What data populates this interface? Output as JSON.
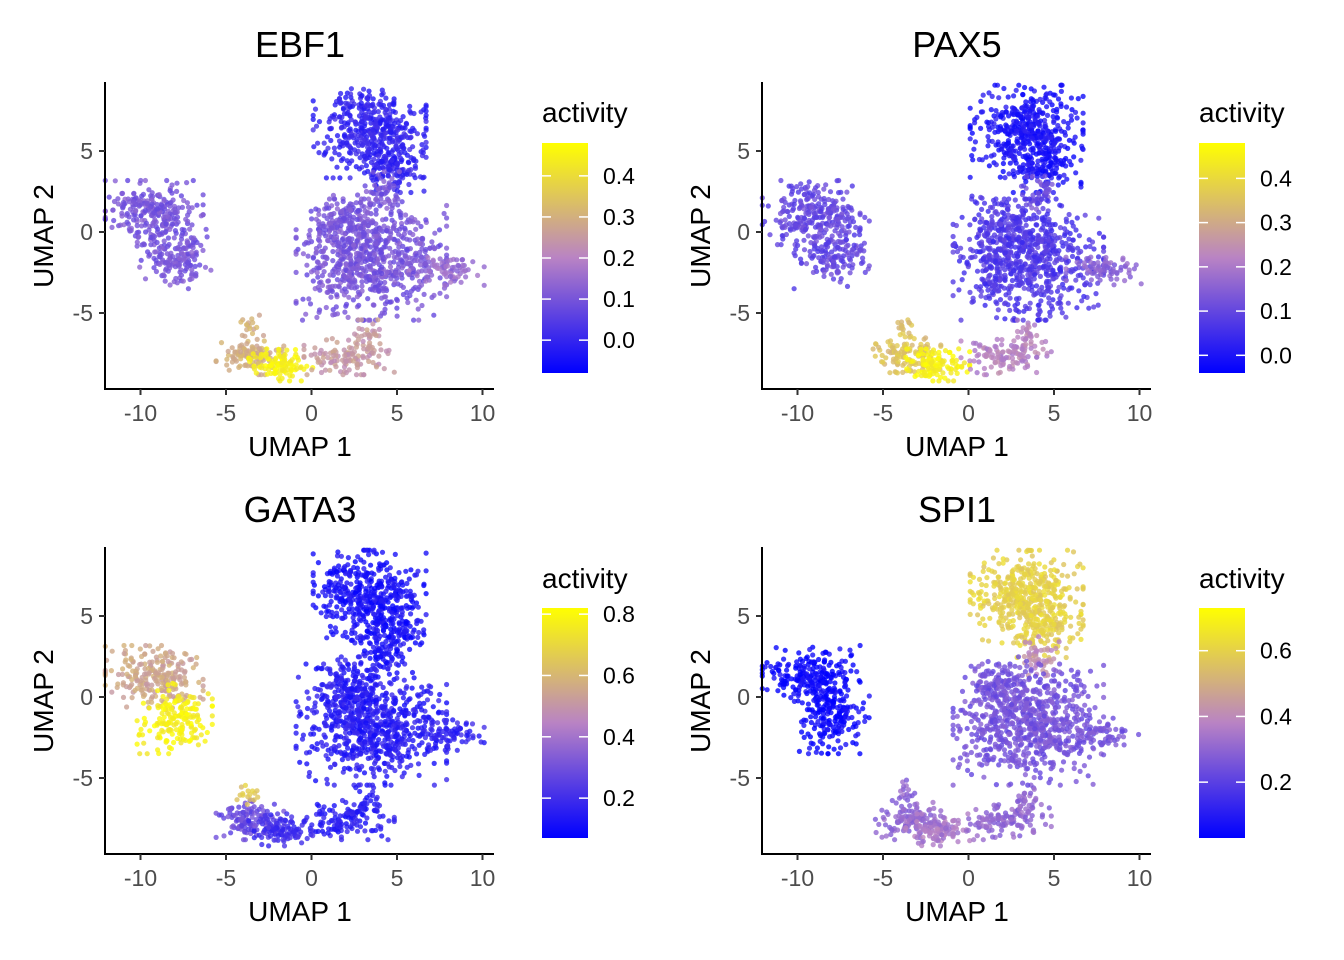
{
  "figure": {
    "legend_title": "activity",
    "gradient_low": "#0000ff",
    "gradient_mid": "#b983c4",
    "gradient_high": "#ffff00"
  },
  "chart_data": [
    {
      "type": "scatter",
      "title": "EBF1",
      "xlabel": "UMAP 1",
      "ylabel": "UMAP 2",
      "xlim": [
        -12,
        10.5
      ],
      "ylim": [
        -9.5,
        9
      ],
      "x_ticks": [
        -10,
        -5,
        0,
        5,
        10
      ],
      "x_tick_labels": [
        "-10",
        "-5",
        "0",
        "5",
        "10"
      ],
      "y_ticks": [
        -5,
        0,
        5
      ],
      "y_tick_labels": [
        "-5",
        "0",
        "5"
      ],
      "legend": {
        "title": "activity",
        "min": -0.08,
        "max": 0.48,
        "ticks": [
          0.0,
          0.1,
          0.2,
          0.3,
          0.4
        ],
        "tick_labels": [
          "0.0",
          "0.1",
          "0.2",
          "0.3",
          "0.4"
        ]
      },
      "cluster_values": {
        "upper": 0.0,
        "left": 0.1,
        "center": 0.1,
        "arm": 0.15,
        "lower_left": 0.3,
        "lower_yellow": 0.45,
        "lower_right": 0.25,
        "connector": 0.1
      }
    },
    {
      "type": "scatter",
      "title": "PAX5",
      "xlabel": "UMAP 1",
      "ylabel": "UMAP 2",
      "xlim": [
        -12,
        10.5
      ],
      "ylim": [
        -9.5,
        9
      ],
      "x_ticks": [
        -10,
        -5,
        0,
        5,
        10
      ],
      "x_tick_labels": [
        "-10",
        "-5",
        "0",
        "5",
        "10"
      ],
      "y_ticks": [
        -5,
        0,
        5
      ],
      "y_tick_labels": [
        "-5",
        "0",
        "5"
      ],
      "legend": {
        "title": "activity",
        "min": -0.04,
        "max": 0.48,
        "ticks": [
          0.0,
          0.1,
          0.2,
          0.3,
          0.4
        ],
        "tick_labels": [
          "0.0",
          "0.1",
          "0.2",
          "0.3",
          "0.4"
        ]
      },
      "cluster_values": {
        "upper": 0.0,
        "left": 0.1,
        "center": 0.07,
        "arm": 0.15,
        "lower_left": 0.35,
        "lower_yellow": 0.45,
        "lower_right": 0.22,
        "connector": 0.12
      }
    },
    {
      "type": "scatter",
      "title": "GATA3",
      "xlabel": "UMAP 1",
      "ylabel": "UMAP 2",
      "xlim": [
        -12,
        10.5
      ],
      "ylim": [
        -9.5,
        9
      ],
      "x_ticks": [
        -10,
        -5,
        0,
        5,
        10
      ],
      "x_tick_labels": [
        "-10",
        "-5",
        "0",
        "5",
        "10"
      ],
      "y_ticks": [
        -5,
        0,
        5
      ],
      "y_tick_labels": [
        "-5",
        "0",
        "5"
      ],
      "legend": {
        "title": "activity",
        "min": 0.07,
        "max": 0.82,
        "ticks": [
          0.2,
          0.4,
          0.6,
          0.8
        ],
        "tick_labels": [
          "0.2",
          "0.4",
          "0.6",
          "0.8"
        ]
      },
      "cluster_values": {
        "upper": 0.12,
        "left": 0.55,
        "left_bottom": 0.78,
        "center": 0.15,
        "arm": 0.17,
        "lower_left": 0.28,
        "lower_tip": 0.65,
        "lower_yellow": 0.2,
        "lower_right": 0.15,
        "connector": 0.12
      }
    },
    {
      "type": "scatter",
      "title": "SPI1",
      "xlabel": "UMAP 1",
      "ylabel": "UMAP 2",
      "xlim": [
        -12,
        10.5
      ],
      "ylim": [
        -9.5,
        9
      ],
      "x_ticks": [
        -10,
        -5,
        0,
        5,
        10
      ],
      "x_tick_labels": [
        "-10",
        "-5",
        "0",
        "5",
        "10"
      ],
      "y_ticks": [
        -5,
        0,
        5
      ],
      "y_tick_labels": [
        "-5",
        "0",
        "5"
      ],
      "legend": {
        "title": "activity",
        "min": 0.03,
        "max": 0.73,
        "ticks": [
          0.2,
          0.4,
          0.6
        ],
        "tick_labels": [
          "0.2",
          "0.4",
          "0.6"
        ]
      },
      "cluster_values": {
        "upper": 0.6,
        "left": 0.05,
        "center": 0.25,
        "arm": 0.25,
        "lower_left": 0.3,
        "lower_yellow": 0.35,
        "lower_right": 0.3,
        "connector": 0.4
      }
    }
  ]
}
